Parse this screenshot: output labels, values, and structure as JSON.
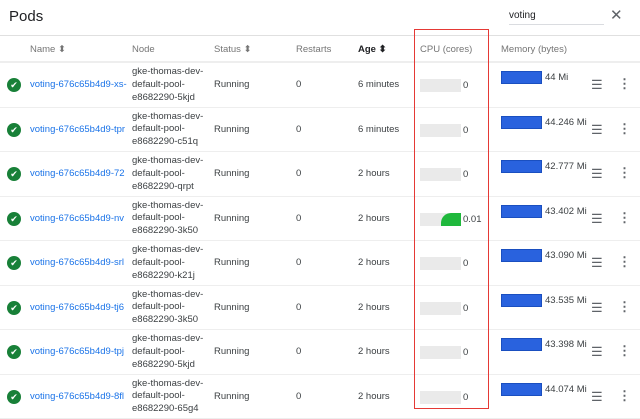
{
  "title": "Pods",
  "search": {
    "value": "voting"
  },
  "columns": {
    "name": "Name ⬍",
    "node": "Node",
    "status": "Status ⬍",
    "restarts": "Restarts",
    "age": "Age ⬍",
    "cpu": "CPU (cores)",
    "memory": "Memory (bytes)"
  },
  "colors": {
    "link": "#1a73e8",
    "memory_bar": "#2962de",
    "cpu_fill": "#1fb83c",
    "status_ok": "#188038",
    "highlight": "#e53935"
  },
  "rows": [
    {
      "name": "voting-676c65b4d9-xs-",
      "node": "gke-thomas-dev-\ndefault-pool-\ne8682290-5kjd",
      "status": "Running",
      "restarts": "0",
      "age": "6 minutes",
      "cpu": "0",
      "cpu_fraction": 0,
      "memory": "44 Mi"
    },
    {
      "name": "voting-676c65b4d9-tpr",
      "node": "gke-thomas-dev-\ndefault-pool-\ne8682290-c51q",
      "status": "Running",
      "restarts": "0",
      "age": "6 minutes",
      "cpu": "0",
      "cpu_fraction": 0,
      "memory": "44.246 Mi"
    },
    {
      "name": "voting-676c65b4d9-72",
      "node": "gke-thomas-dev-\ndefault-pool-\ne8682290-qrpt",
      "status": "Running",
      "restarts": "0",
      "age": "2 hours",
      "cpu": "0",
      "cpu_fraction": 0,
      "memory": "42.777 Mi"
    },
    {
      "name": "voting-676c65b4d9-nv",
      "node": "gke-thomas-dev-\ndefault-pool-\ne8682290-3k50",
      "status": "Running",
      "restarts": "0",
      "age": "2 hours",
      "cpu": "0.01",
      "cpu_fraction": 0.5,
      "memory": "43.402 Mi"
    },
    {
      "name": "voting-676c65b4d9-srl",
      "node": "gke-thomas-dev-\ndefault-pool-\ne8682290-k21j",
      "status": "Running",
      "restarts": "0",
      "age": "2 hours",
      "cpu": "0",
      "cpu_fraction": 0,
      "memory": "43.090 Mi"
    },
    {
      "name": "voting-676c65b4d9-tj6",
      "node": "gke-thomas-dev-\ndefault-pool-\ne8682290-3k50",
      "status": "Running",
      "restarts": "0",
      "age": "2 hours",
      "cpu": "0",
      "cpu_fraction": 0,
      "memory": "43.535 Mi"
    },
    {
      "name": "voting-676c65b4d9-tpj",
      "node": "gke-thomas-dev-\ndefault-pool-\ne8682290-5kjd",
      "status": "Running",
      "restarts": "0",
      "age": "2 hours",
      "cpu": "0",
      "cpu_fraction": 0,
      "memory": "43.398 Mi"
    },
    {
      "name": "voting-676c65b4d9-8fl",
      "node": "gke-thomas-dev-\ndefault-pool-\ne8682290-65g4",
      "status": "Running",
      "restarts": "0",
      "age": "2 hours",
      "cpu": "0",
      "cpu_fraction": 0,
      "memory": "44.074 Mi"
    }
  ]
}
